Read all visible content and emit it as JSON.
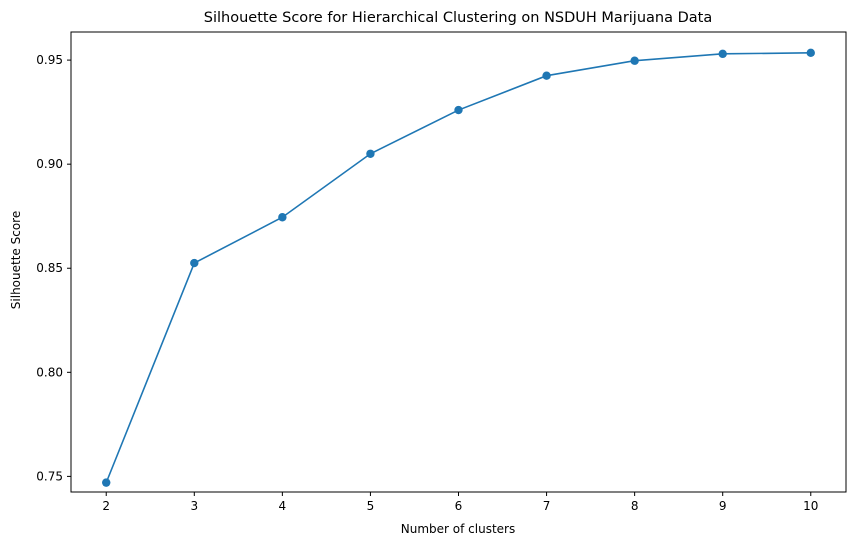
{
  "chart_data": {
    "type": "line",
    "title": "Silhouette Score for Hierarchical Clustering on NSDUH Marijuana Data",
    "xlabel": "Number of clusters",
    "ylabel": "Silhouette Score",
    "x": [
      2,
      3,
      4,
      5,
      6,
      7,
      8,
      9,
      10
    ],
    "x_ticks": [
      "2",
      "3",
      "4",
      "5",
      "6",
      "7",
      "8",
      "9",
      "10"
    ],
    "y_ticks": [
      "0.75",
      "0.80",
      "0.85",
      "0.90",
      "0.95"
    ],
    "y_tick_values": [
      0.75,
      0.8,
      0.85,
      0.9,
      0.95
    ],
    "xlim": [
      1.6,
      10.4
    ],
    "ylim": [
      0.7425,
      0.9635
    ],
    "grid": false,
    "marker": "circle",
    "color": "#1f77b4",
    "series": [
      {
        "values": [
          0.747,
          0.8525,
          0.8745,
          0.905,
          0.926,
          0.9425,
          0.9497,
          0.953,
          0.9535
        ]
      }
    ]
  }
}
